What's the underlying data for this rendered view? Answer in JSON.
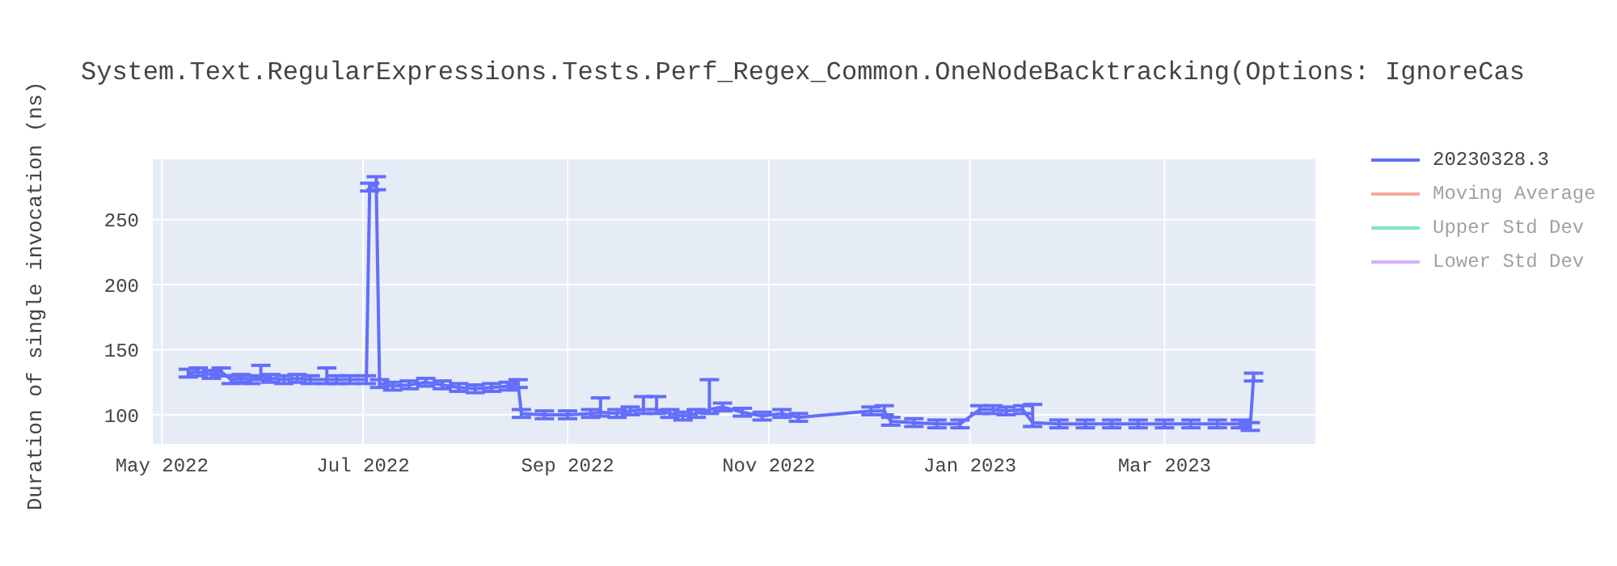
{
  "chart_data": {
    "type": "line",
    "title": "System.Text.RegularExpressions.Tests.Perf_Regex_Common.OneNodeBacktracking(Options: IgnoreCas",
    "ylabel": "Duration of single invocation (ns)",
    "x": [
      "2022-05-09",
      "2022-05-12",
      "2022-05-16",
      "2022-05-19",
      "2022-05-22",
      "2022-05-25",
      "2022-05-28",
      "2022-05-31",
      "2022-06-03",
      "2022-06-07",
      "2022-06-11",
      "2022-06-15",
      "2022-06-20",
      "2022-06-23",
      "2022-06-27",
      "2022-07-02",
      "2022-07-03",
      "2022-07-05",
      "2022-07-06",
      "2022-07-10",
      "2022-07-15",
      "2022-07-20",
      "2022-07-25",
      "2022-07-30",
      "2022-08-04",
      "2022-08-09",
      "2022-08-14",
      "2022-08-17",
      "2022-08-18",
      "2022-08-25",
      "2022-09-01",
      "2022-09-08",
      "2022-09-11",
      "2022-09-16",
      "2022-09-20",
      "2022-09-24",
      "2022-09-28",
      "2022-10-02",
      "2022-10-06",
      "2022-10-10",
      "2022-10-14",
      "2022-10-18",
      "2022-10-24",
      "2022-10-30",
      "2022-11-05",
      "2022-11-10",
      "2022-12-02",
      "2022-12-06",
      "2022-12-08",
      "2022-12-15",
      "2022-12-22",
      "2022-12-29",
      "2023-01-04",
      "2023-01-08",
      "2023-01-12",
      "2023-01-17",
      "2023-01-20",
      "2023-01-28",
      "2023-02-05",
      "2023-02-13",
      "2023-02-21",
      "2023-03-01",
      "2023-03-09",
      "2023-03-17",
      "2023-03-24",
      "2023-03-27",
      "2023-03-28"
    ],
    "series": [
      {
        "name": "20230328.3",
        "color": "#636efa",
        "values": [
          132,
          133,
          131,
          133,
          127,
          128,
          127,
          130,
          128,
          127,
          128,
          127,
          127,
          127,
          127,
          127,
          275,
          277,
          124,
          122,
          123,
          125,
          123,
          121,
          120,
          121,
          122,
          124,
          101,
          100,
          100,
          101,
          102,
          101,
          103,
          104,
          104,
          101,
          99,
          101,
          104,
          106,
          102,
          99,
          101,
          98,
          103,
          103,
          95,
          94,
          93,
          93,
          104,
          104,
          103,
          104,
          94,
          93,
          93,
          93,
          93,
          93,
          93,
          93,
          93,
          91,
          129
        ],
        "errors": [
          3,
          3,
          3,
          3,
          3,
          3,
          3,
          [
            127,
            138
          ],
          3,
          3,
          3,
          3,
          [
            124,
            136
          ],
          3,
          3,
          3,
          3,
          [
            273,
            283
          ],
          3,
          3,
          3,
          3,
          3,
          3,
          3,
          3,
          3,
          3,
          3,
          3,
          3,
          3,
          [
            99,
            113
          ],
          3,
          3,
          [
            101,
            114
          ],
          [
            101,
            114
          ],
          3,
          3,
          3,
          [
            101,
            127
          ],
          3,
          3,
          3,
          3,
          3,
          3,
          [
            100,
            107
          ],
          3,
          3,
          3,
          3,
          3,
          3,
          3,
          3,
          [
            91,
            108
          ],
          3,
          3,
          3,
          3,
          3,
          3,
          3,
          3,
          3,
          3
        ]
      },
      {
        "name": "Moving Average",
        "color": "#ef553b",
        "values": [
          null,
          null,
          null,
          null,
          null,
          null,
          null,
          null,
          null,
          null,
          null,
          null,
          null,
          null,
          null,
          null,
          null,
          null,
          null,
          null,
          null,
          null,
          null,
          null,
          null,
          null,
          null,
          null,
          null,
          null,
          null,
          null,
          null,
          null,
          null,
          null,
          null,
          null,
          null,
          null,
          null,
          null,
          null,
          null,
          null,
          null,
          null,
          null,
          null,
          null,
          null,
          null,
          null,
          null,
          null,
          null,
          null,
          null,
          null,
          null,
          null,
          null,
          null,
          null,
          null,
          null,
          null
        ]
      },
      {
        "name": "Upper Std Dev",
        "color": "#00cc96",
        "values": [
          null,
          null,
          null,
          null,
          null,
          null,
          null,
          null,
          null,
          null,
          null,
          null,
          null,
          null,
          null,
          null,
          null,
          null,
          null,
          null,
          null,
          null,
          null,
          null,
          null,
          null,
          null,
          null,
          null,
          null,
          null,
          null,
          null,
          null,
          null,
          null,
          null,
          null,
          null,
          null,
          null,
          null,
          null,
          null,
          null,
          null,
          null,
          null,
          null,
          null,
          null,
          null,
          null,
          null,
          null,
          null,
          null,
          null,
          null,
          null,
          null,
          null,
          null,
          null,
          null,
          null,
          null
        ]
      },
      {
        "name": "Lower Std Dev",
        "color": "#ab63fa",
        "values": [
          null,
          null,
          null,
          null,
          null,
          null,
          null,
          null,
          null,
          null,
          null,
          null,
          null,
          null,
          null,
          null,
          null,
          null,
          null,
          null,
          null,
          null,
          null,
          null,
          null,
          null,
          null,
          null,
          null,
          null,
          null,
          null,
          null,
          null,
          null,
          null,
          null,
          null,
          null,
          null,
          null,
          null,
          null,
          null,
          null,
          null,
          null,
          null,
          null,
          null,
          null,
          null,
          null,
          null,
          null,
          null,
          null,
          null,
          null,
          null,
          null,
          null,
          null,
          null,
          null,
          null,
          null
        ]
      }
    ],
    "xlim": [
      "2022-04-28",
      "2023-04-16"
    ],
    "xticks": [
      {
        "value": "2022-05-01",
        "label": "May 2022"
      },
      {
        "value": "2022-07-01",
        "label": "Jul 2022"
      },
      {
        "value": "2022-09-01",
        "label": "Sep 2022"
      },
      {
        "value": "2022-11-01",
        "label": "Nov 2022"
      },
      {
        "value": "2023-01-01",
        "label": "Jan 2023"
      },
      {
        "value": "2023-03-01",
        "label": "Mar 2023"
      }
    ],
    "ylim": [
      77,
      297
    ],
    "yticks": [
      100,
      150,
      200,
      250
    ],
    "grid": true,
    "legend": "top right",
    "marker": "none",
    "line_style": "solid"
  }
}
